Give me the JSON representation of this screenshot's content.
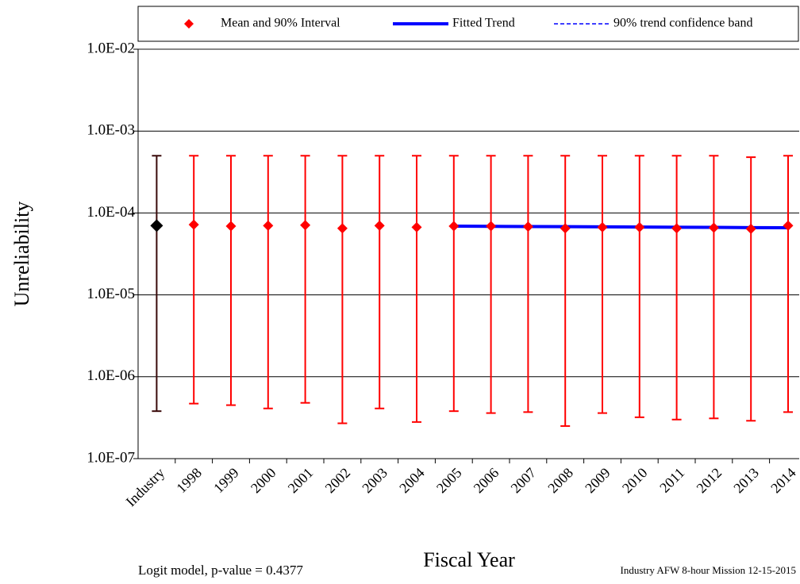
{
  "chart_data": {
    "type": "errorbar",
    "y_label": "Unreliability",
    "x_label": "Fiscal Year",
    "annotations": [
      "Logit model, p-value = 0.4377",
      "Industry AFW 8-hour Mission 12-15-2015"
    ],
    "categories": [
      "Industry",
      "1998",
      "1999",
      "2000",
      "2001",
      "2002",
      "2003",
      "2004",
      "2005",
      "2006",
      "2007",
      "2008",
      "2009",
      "2010",
      "2011",
      "2012",
      "2013",
      "2014"
    ],
    "log_y": true,
    "grid": true,
    "legend": "top",
    "ylim": [
      1e-07,
      0.01
    ],
    "yticks": [
      {
        "value": 1e-07,
        "label": "1.0E-07"
      },
      {
        "value": 1e-06,
        "label": "1.0E-06"
      },
      {
        "value": 1e-05,
        "label": "1.0E-05"
      },
      {
        "value": 0.0001,
        "label": "1.0E-04"
      },
      {
        "value": 0.001,
        "label": "1.0E-03"
      },
      {
        "value": 0.01,
        "label": "1.0E-02"
      }
    ],
    "point_colors": [
      "#000000",
      "#ff0000",
      "#ff0000",
      "#ff0000",
      "#ff0000",
      "#ff0000",
      "#ff0000",
      "#ff0000",
      "#ff0000",
      "#ff0000",
      "#ff0000",
      "#ff0000",
      "#ff0000",
      "#ff0000",
      "#ff0000",
      "#ff0000",
      "#ff0000",
      "#ff0000"
    ],
    "bar_colors": [
      "#3a0a0a",
      "#ff0000",
      "#ff0000",
      "#ff0000",
      "#ff0000",
      "#ff0000",
      "#ff0000",
      "#ff0000",
      "#ff0000",
      "#ff0000",
      "#ff0000",
      "#ff0000",
      "#ff0000",
      "#ff0000",
      "#ff0000",
      "#ff0000",
      "#ff0000",
      "#ff0000"
    ],
    "series": [
      {
        "name": "Mean and 90% Interval",
        "color": "#ff0000",
        "values": [
          7e-05,
          7.2e-05,
          6.9e-05,
          7e-05,
          7.1e-05,
          6.5e-05,
          7e-05,
          6.7e-05,
          6.9e-05,
          6.9e-05,
          6.8e-05,
          6.5e-05,
          6.7e-05,
          6.7e-05,
          6.5e-05,
          6.6e-05,
          6.4e-05,
          7e-05
        ],
        "lower": [
          3.8e-07,
          4.7e-07,
          4.5e-07,
          4.1e-07,
          4.8e-07,
          2.7e-07,
          4.1e-07,
          2.8e-07,
          3.8e-07,
          3.6e-07,
          3.7e-07,
          2.5e-07,
          3.6e-07,
          3.2e-07,
          3e-07,
          3.1e-07,
          2.9e-07,
          3.7e-07
        ],
        "upper": [
          0.0005,
          0.0005,
          0.0005,
          0.0005,
          0.0005,
          0.0005,
          0.0005,
          0.0005,
          0.0005,
          0.0005,
          0.0005,
          0.0005,
          0.0005,
          0.0005,
          0.0005,
          0.0005,
          0.00048,
          0.0005
        ]
      },
      {
        "name": "Fitted Trend",
        "color": "#0000ff",
        "values": [
          null,
          null,
          null,
          null,
          null,
          null,
          null,
          null,
          6.9e-05,
          6.87e-05,
          6.83e-05,
          6.8e-05,
          6.77e-05,
          6.73e-05,
          6.7e-05,
          6.67e-05,
          6.63e-05,
          6.6e-05
        ]
      },
      {
        "name": "90% trend confidence band",
        "color": "#0000ff",
        "upper": [
          null,
          null,
          null,
          null,
          null,
          null,
          null,
          null,
          7e-05,
          6.95e-05,
          6.9e-05,
          6.86e-05,
          6.83e-05,
          6.8e-05,
          6.78e-05,
          6.76e-05,
          6.74e-05,
          6.72e-05
        ],
        "lower": [
          null,
          null,
          null,
          null,
          null,
          null,
          null,
          null,
          6.8e-05,
          6.78e-05,
          6.76e-05,
          6.74e-05,
          6.71e-05,
          6.67e-05,
          6.62e-05,
          6.58e-05,
          6.53e-05,
          6.48e-05
        ]
      }
    ]
  }
}
